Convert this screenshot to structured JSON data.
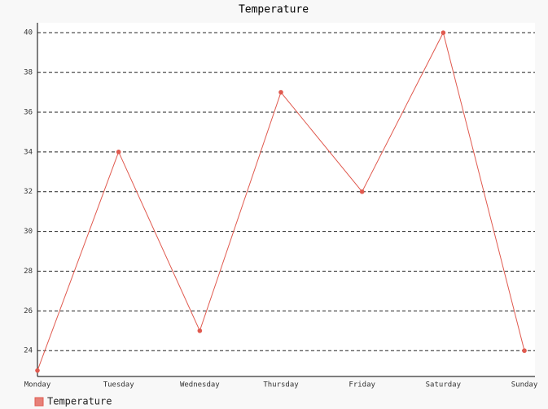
{
  "chart_data": {
    "type": "line",
    "title": "Temperature",
    "categories": [
      "Monday",
      "Tuesday",
      "Wednesday",
      "Thursday",
      "Friday",
      "Saturday",
      "Sunday"
    ],
    "series": [
      {
        "name": "Temperature",
        "color": "#e05a4f",
        "values": [
          23,
          34,
          25,
          37,
          32,
          40,
          24
        ]
      }
    ],
    "ylim": [
      22.7,
      40.5
    ],
    "yticks": [
      24,
      26,
      28,
      30,
      32,
      34,
      36,
      38,
      40
    ],
    "grid": true,
    "legend": "bottom-left"
  }
}
